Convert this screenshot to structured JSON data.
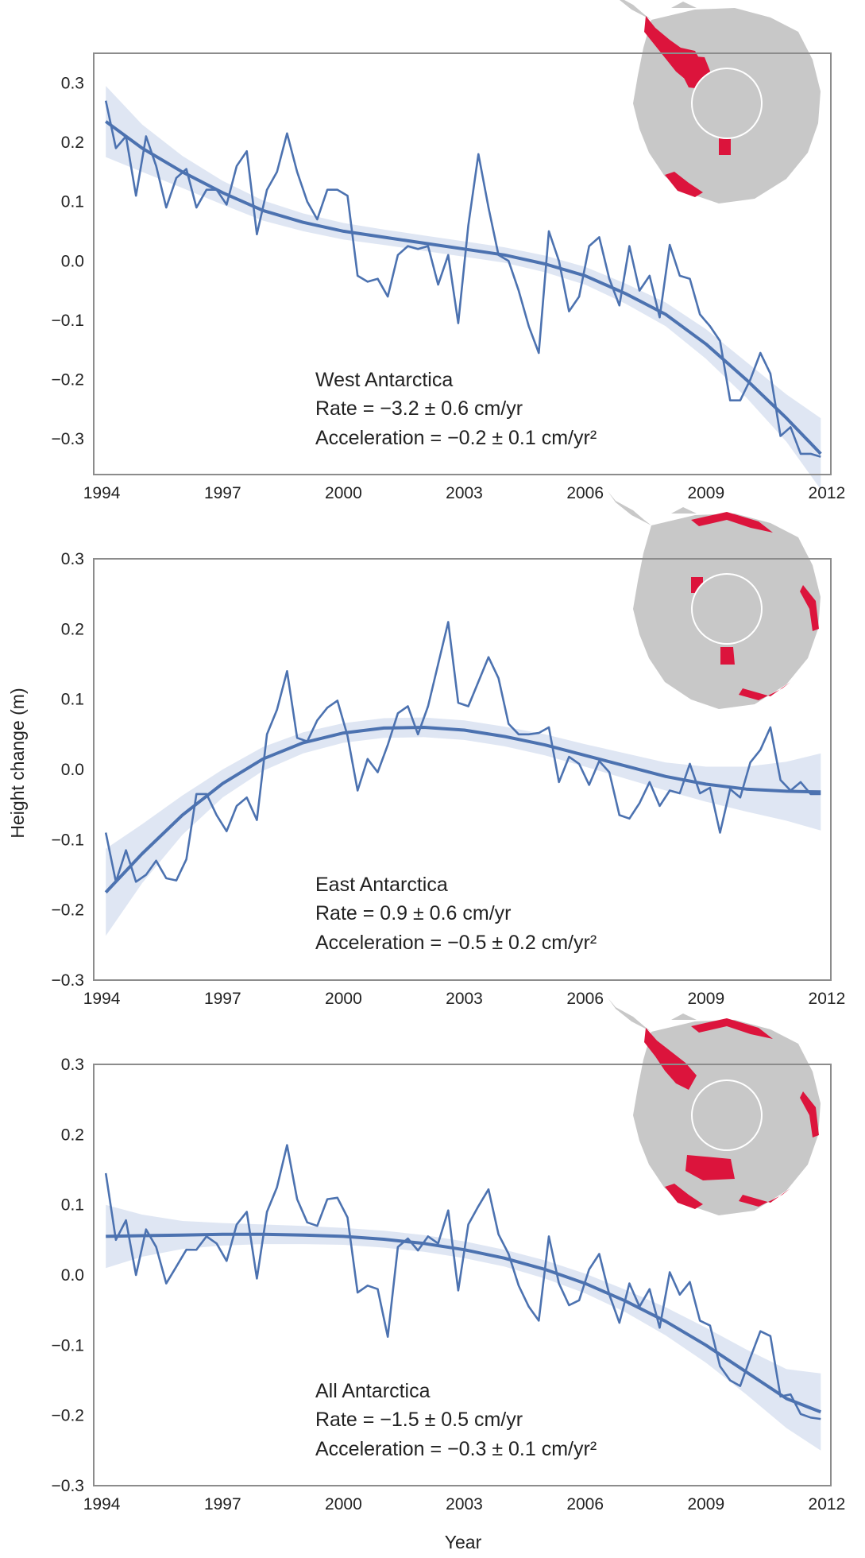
{
  "figure": {
    "ylabel": "Height change (m)",
    "xlabel": "Year"
  },
  "colors": {
    "line": "#4c72b0",
    "band": "#c9d5eb",
    "frame": "#8c8c8c",
    "map_land": "#c8c8c8",
    "map_highlight": "#dc143c",
    "map_hole": "#ffffff"
  },
  "chart_data": [
    {
      "type": "line",
      "region": "West Antarctica",
      "rate_text": "Rate = −3.2 ± 0.6 cm/yr",
      "accel_text": "Acceleration = −0.2 ± 0.1 cm/yr²",
      "xlim": [
        1993.8,
        2012.1
      ],
      "ylim": [
        -0.36,
        0.35
      ],
      "xticks": [
        1994,
        1997,
        2000,
        2003,
        2006,
        2009,
        2012
      ],
      "yticks": [
        0.3,
        0.2,
        0.1,
        0.0,
        -0.1,
        -0.2,
        -0.3
      ],
      "ytick_labels": [
        "0.3",
        "0.2",
        "0.1",
        "0.0",
        "−0.1",
        "−0.2",
        "−0.3"
      ],
      "grid": false,
      "series": [
        {
          "kind": "observed",
          "x": [
            1994.1,
            1994.35,
            1994.6,
            1994.85,
            1995.1,
            1995.35,
            1995.6,
            1995.85,
            1996.1,
            1996.35,
            1996.6,
            1996.85,
            1997.1,
            1997.35,
            1997.6,
            1997.85,
            1998.1,
            1998.35,
            1998.6,
            1998.85,
            1999.1,
            1999.35,
            1999.6,
            1999.85,
            2000.1,
            2000.35,
            2000.6,
            2000.85,
            2001.1,
            2001.35,
            2001.6,
            2001.85,
            2002.1,
            2002.35,
            2002.6,
            2002.85,
            2003.1,
            2003.35,
            2003.6,
            2003.85,
            2004.1,
            2004.35,
            2004.6,
            2004.85,
            2005.1,
            2005.35,
            2005.6,
            2005.85,
            2006.1,
            2006.35,
            2006.6,
            2006.85,
            2007.1,
            2007.35,
            2007.6,
            2007.85,
            2008.1,
            2008.35,
            2008.6,
            2008.85,
            2009.1,
            2009.35,
            2009.6,
            2009.85,
            2010.1,
            2010.35,
            2010.6,
            2010.85,
            2011.1,
            2011.35,
            2011.6,
            2011.85
          ],
          "y": [
            0.27,
            0.19,
            0.21,
            0.11,
            0.21,
            0.16,
            0.09,
            0.14,
            0.155,
            0.09,
            0.12,
            0.12,
            0.095,
            0.16,
            0.185,
            0.045,
            0.12,
            0.15,
            0.215,
            0.15,
            0.1,
            0.07,
            0.12,
            0.12,
            0.11,
            -0.025,
            -0.035,
            -0.03,
            -0.06,
            0.01,
            0.025,
            0.02,
            0.025,
            -0.04,
            0.01,
            -0.105,
            0.06,
            0.18,
            0.09,
            0.01,
            0.0,
            -0.05,
            -0.11,
            -0.155,
            0.05,
            0.0,
            -0.085,
            -0.06,
            0.025,
            0.04,
            -0.03,
            -0.075,
            0.025,
            -0.05,
            -0.025,
            -0.095,
            0.027,
            -0.025,
            -0.03,
            -0.09,
            -0.11,
            -0.135,
            -0.235,
            -0.235,
            -0.2,
            -0.155,
            -0.19,
            -0.295,
            -0.28,
            -0.325,
            -0.325,
            -0.33
          ]
        },
        {
          "kind": "fit",
          "x": [
            1994.1,
            1995,
            1996,
            1997,
            1998,
            1999,
            2000,
            2001,
            2002,
            2003,
            2004,
            2005,
            2006,
            2007,
            2008,
            2009,
            2010,
            2011,
            2011.85
          ],
          "y": [
            0.235,
            0.19,
            0.15,
            0.115,
            0.085,
            0.065,
            0.05,
            0.04,
            0.03,
            0.02,
            0.01,
            -0.005,
            -0.025,
            -0.055,
            -0.09,
            -0.14,
            -0.2,
            -0.265,
            -0.325
          ],
          "ci_halfwidth": [
            0.06,
            0.04,
            0.027,
            0.02,
            0.017,
            0.015,
            0.014,
            0.013,
            0.013,
            0.013,
            0.013,
            0.014,
            0.015,
            0.017,
            0.02,
            0.025,
            0.03,
            0.04,
            0.06
          ]
        }
      ]
    },
    {
      "type": "line",
      "region": "East Antarctica",
      "rate_text": "Rate = 0.9 ± 0.6 cm/yr",
      "accel_text": "Acceleration = −0.5 ± 0.2 cm/yr²",
      "xlim": [
        1993.8,
        2012.1
      ],
      "ylim": [
        -0.3,
        0.3
      ],
      "xticks": [
        1994,
        1997,
        2000,
        2003,
        2006,
        2009,
        2012
      ],
      "yticks": [
        0.3,
        0.2,
        0.1,
        0.0,
        -0.1,
        -0.2,
        -0.3
      ],
      "ytick_labels": [
        "0.3",
        "0.2",
        "0.1",
        "0.0",
        "−0.1",
        "−0.2",
        "−0.3"
      ],
      "grid": false,
      "series": [
        {
          "kind": "observed",
          "x": [
            1994.1,
            1994.35,
            1994.6,
            1994.85,
            1995.1,
            1995.35,
            1995.6,
            1995.85,
            1996.1,
            1996.35,
            1996.6,
            1996.85,
            1997.1,
            1997.35,
            1997.6,
            1997.85,
            1998.1,
            1998.35,
            1998.6,
            1998.85,
            1999.1,
            1999.35,
            1999.6,
            1999.85,
            2000.1,
            2000.35,
            2000.6,
            2000.85,
            2001.1,
            2001.35,
            2001.6,
            2001.85,
            2002.1,
            2002.35,
            2002.6,
            2002.85,
            2003.1,
            2003.35,
            2003.6,
            2003.85,
            2004.1,
            2004.35,
            2004.6,
            2004.85,
            2005.1,
            2005.35,
            2005.6,
            2005.85,
            2006.1,
            2006.35,
            2006.6,
            2006.85,
            2007.1,
            2007.35,
            2007.6,
            2007.85,
            2008.1,
            2008.35,
            2008.6,
            2008.85,
            2009.1,
            2009.35,
            2009.6,
            2009.85,
            2010.1,
            2010.35,
            2010.6,
            2010.85,
            2011.1,
            2011.35,
            2011.6,
            2011.85
          ],
          "y": [
            -0.09,
            -0.16,
            -0.115,
            -0.16,
            -0.15,
            -0.13,
            -0.155,
            -0.158,
            -0.128,
            -0.035,
            -0.035,
            -0.065,
            -0.088,
            -0.052,
            -0.04,
            -0.072,
            0.05,
            0.085,
            0.14,
            0.045,
            0.04,
            0.07,
            0.088,
            0.098,
            0.048,
            -0.03,
            0.015,
            -0.004,
            0.035,
            0.08,
            0.09,
            0.05,
            0.09,
            0.15,
            0.21,
            0.095,
            0.09,
            0.125,
            0.16,
            0.13,
            0.065,
            0.05,
            0.05,
            0.052,
            0.06,
            -0.018,
            0.018,
            0.008,
            -0.022,
            0.012,
            -0.004,
            -0.065,
            -0.07,
            -0.048,
            -0.018,
            -0.052,
            -0.03,
            -0.034,
            0.008,
            -0.034,
            -0.026,
            -0.09,
            -0.028,
            -0.04,
            0.01,
            0.028,
            0.06,
            -0.015,
            -0.03,
            -0.018,
            -0.035,
            -0.035
          ]
        },
        {
          "kind": "fit",
          "x": [
            1994.1,
            1995,
            1996,
            1997,
            1998,
            1999,
            2000,
            2001,
            2002,
            2003,
            2004,
            2005,
            2006,
            2007,
            2008,
            2009,
            2010,
            2011,
            2011.85
          ],
          "y": [
            -0.175,
            -0.12,
            -0.065,
            -0.02,
            0.015,
            0.038,
            0.052,
            0.059,
            0.06,
            0.056,
            0.047,
            0.035,
            0.02,
            0.005,
            -0.01,
            -0.021,
            -0.028,
            -0.031,
            -0.032
          ],
          "ci_halfwidth": [
            0.062,
            0.042,
            0.028,
            0.02,
            0.017,
            0.015,
            0.014,
            0.014,
            0.014,
            0.014,
            0.014,
            0.015,
            0.016,
            0.018,
            0.02,
            0.025,
            0.032,
            0.042,
            0.055
          ]
        }
      ]
    },
    {
      "type": "line",
      "region": "All Antarctica",
      "rate_text": "Rate = −1.5 ± 0.5 cm/yr",
      "accel_text": "Acceleration = −0.3 ± 0.1 cm/yr²",
      "xlim": [
        1993.8,
        2012.1
      ],
      "ylim": [
        -0.3,
        0.3
      ],
      "xticks": [
        1994,
        1997,
        2000,
        2003,
        2006,
        2009,
        2012
      ],
      "yticks": [
        0.3,
        0.2,
        0.1,
        0.0,
        -0.1,
        -0.2,
        -0.3
      ],
      "ytick_labels": [
        "0.3",
        "0.2",
        "0.1",
        "0.0",
        "−0.1",
        "−0.2",
        "−0.3"
      ],
      "grid": false,
      "series": [
        {
          "kind": "observed",
          "x": [
            1994.1,
            1994.35,
            1994.6,
            1994.85,
            1995.1,
            1995.35,
            1995.6,
            1995.85,
            1996.1,
            1996.35,
            1996.6,
            1996.85,
            1997.1,
            1997.35,
            1997.6,
            1997.85,
            1998.1,
            1998.35,
            1998.6,
            1998.85,
            1999.1,
            1999.35,
            1999.6,
            1999.85,
            2000.1,
            2000.35,
            2000.6,
            2000.85,
            2001.1,
            2001.35,
            2001.6,
            2001.85,
            2002.1,
            2002.35,
            2002.6,
            2002.85,
            2003.1,
            2003.35,
            2003.6,
            2003.85,
            2004.1,
            2004.35,
            2004.6,
            2004.85,
            2005.1,
            2005.35,
            2005.6,
            2005.85,
            2006.1,
            2006.35,
            2006.6,
            2006.85,
            2007.1,
            2007.35,
            2007.6,
            2007.85,
            2008.1,
            2008.35,
            2008.6,
            2008.85,
            2009.1,
            2009.35,
            2009.6,
            2009.85,
            2010.1,
            2010.35,
            2010.6,
            2010.85,
            2011.1,
            2011.35,
            2011.6,
            2011.85
          ],
          "y": [
            0.145,
            0.05,
            0.078,
            0.0,
            0.065,
            0.04,
            -0.012,
            0.012,
            0.036,
            0.036,
            0.055,
            0.045,
            0.02,
            0.072,
            0.09,
            -0.005,
            0.09,
            0.125,
            0.185,
            0.108,
            0.075,
            0.07,
            0.108,
            0.11,
            0.082,
            -0.025,
            -0.015,
            -0.02,
            -0.088,
            0.04,
            0.052,
            0.035,
            0.055,
            0.045,
            0.092,
            -0.022,
            0.072,
            0.098,
            0.122,
            0.058,
            0.03,
            -0.015,
            -0.045,
            -0.065,
            0.055,
            -0.012,
            -0.043,
            -0.036,
            0.008,
            0.03,
            -0.028,
            -0.068,
            -0.012,
            -0.045,
            -0.02,
            -0.075,
            0.004,
            -0.028,
            -0.01,
            -0.065,
            -0.072,
            -0.13,
            -0.15,
            -0.158,
            -0.118,
            -0.08,
            -0.087,
            -0.173,
            -0.17,
            -0.198,
            -0.203,
            -0.205
          ]
        },
        {
          "kind": "fit",
          "x": [
            1994.1,
            1995,
            1996,
            1997,
            1998,
            1999,
            2000,
            2001,
            2002,
            2003,
            2004,
            2005,
            2006,
            2007,
            2008,
            2009,
            2010,
            2011,
            2011.85
          ],
          "y": [
            0.055,
            0.056,
            0.057,
            0.058,
            0.058,
            0.057,
            0.055,
            0.051,
            0.045,
            0.036,
            0.024,
            0.008,
            -0.012,
            -0.037,
            -0.066,
            -0.1,
            -0.138,
            -0.176,
            -0.195
          ],
          "ci_halfwidth": [
            0.045,
            0.03,
            0.02,
            0.016,
            0.014,
            0.013,
            0.012,
            0.012,
            0.012,
            0.012,
            0.012,
            0.013,
            0.014,
            0.016,
            0.02,
            0.025,
            0.032,
            0.042,
            0.055
          ]
        }
      ]
    }
  ]
}
